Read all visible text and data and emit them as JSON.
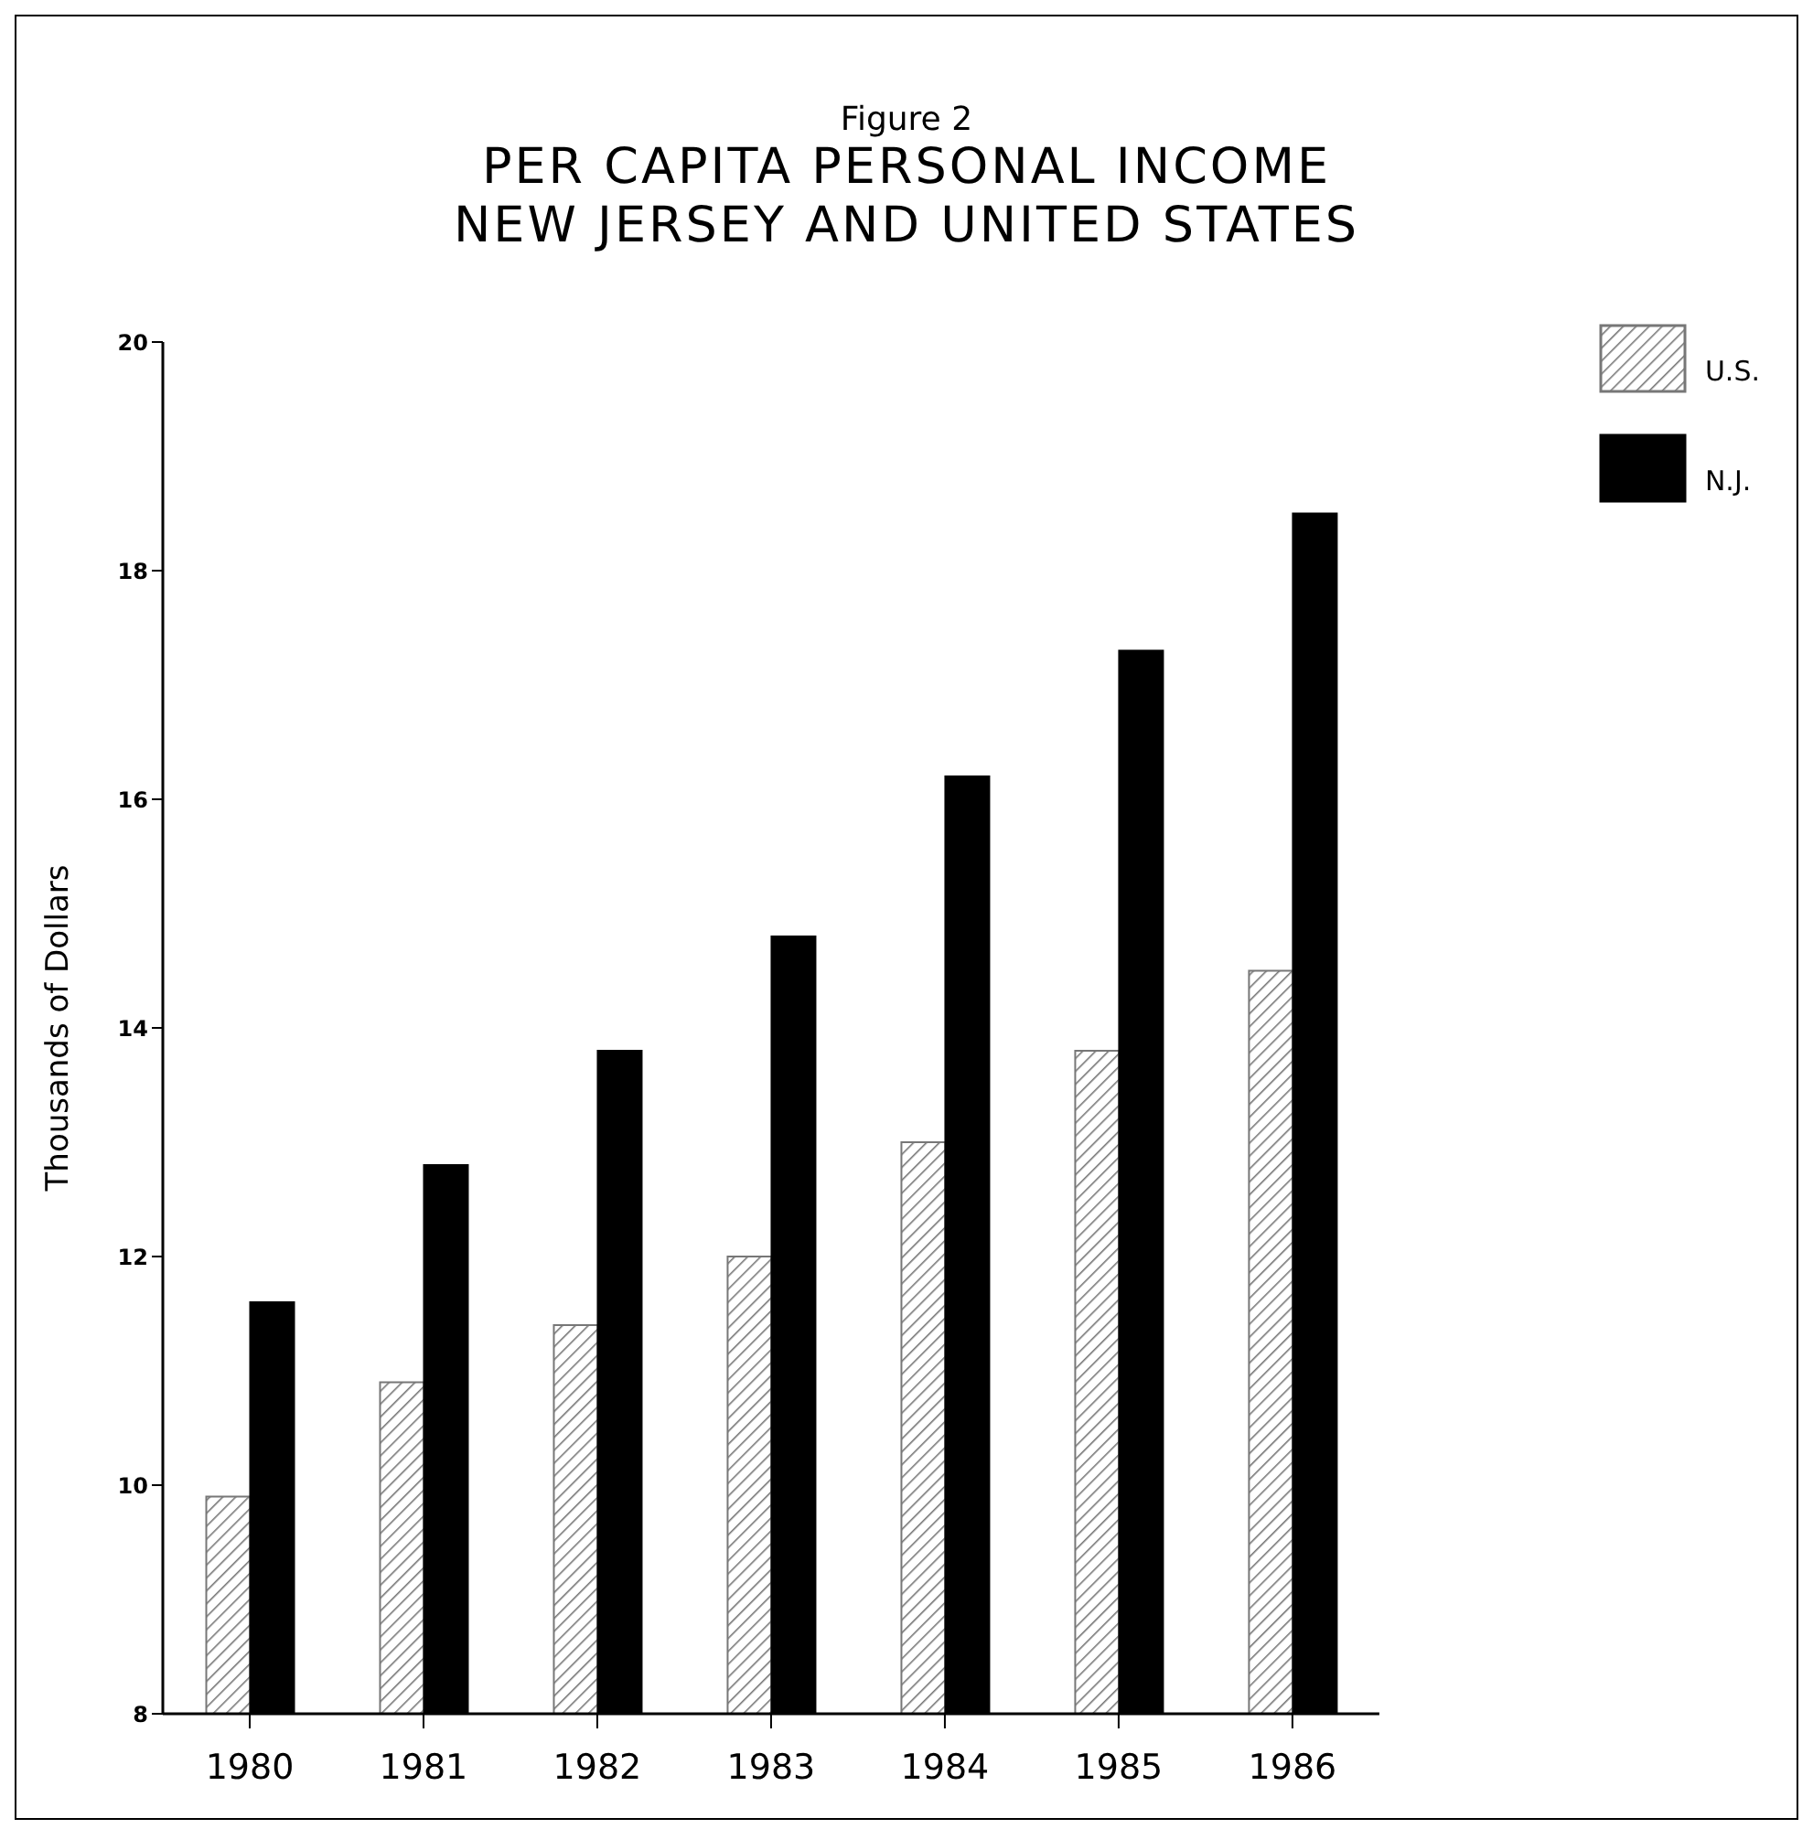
{
  "chart_data": {
    "type": "bar",
    "title": "PER CAPITA PERSONAL INCOME",
    "subtitle": "NEW JERSEY AND UNITED STATES",
    "annotations": [
      "Figure 2"
    ],
    "ylabel": "Thousands of Dollars",
    "categories": [
      "1980",
      "1981",
      "1982",
      "1983",
      "1984",
      "1985",
      "1986"
    ],
    "series": [
      {
        "name": "U.S.",
        "color": "#777777",
        "values": [
          9.9,
          10.9,
          11.4,
          12.0,
          13.0,
          13.8,
          14.5
        ]
      },
      {
        "name": "N.J.",
        "color": "#000000",
        "values": [
          11.6,
          12.8,
          13.8,
          14.8,
          16.2,
          17.3,
          18.5
        ]
      }
    ],
    "ylim": [
      8,
      20
    ],
    "yticks": [
      8,
      10,
      12,
      14,
      16,
      18,
      20
    ],
    "grid": false,
    "legend": "top right"
  }
}
